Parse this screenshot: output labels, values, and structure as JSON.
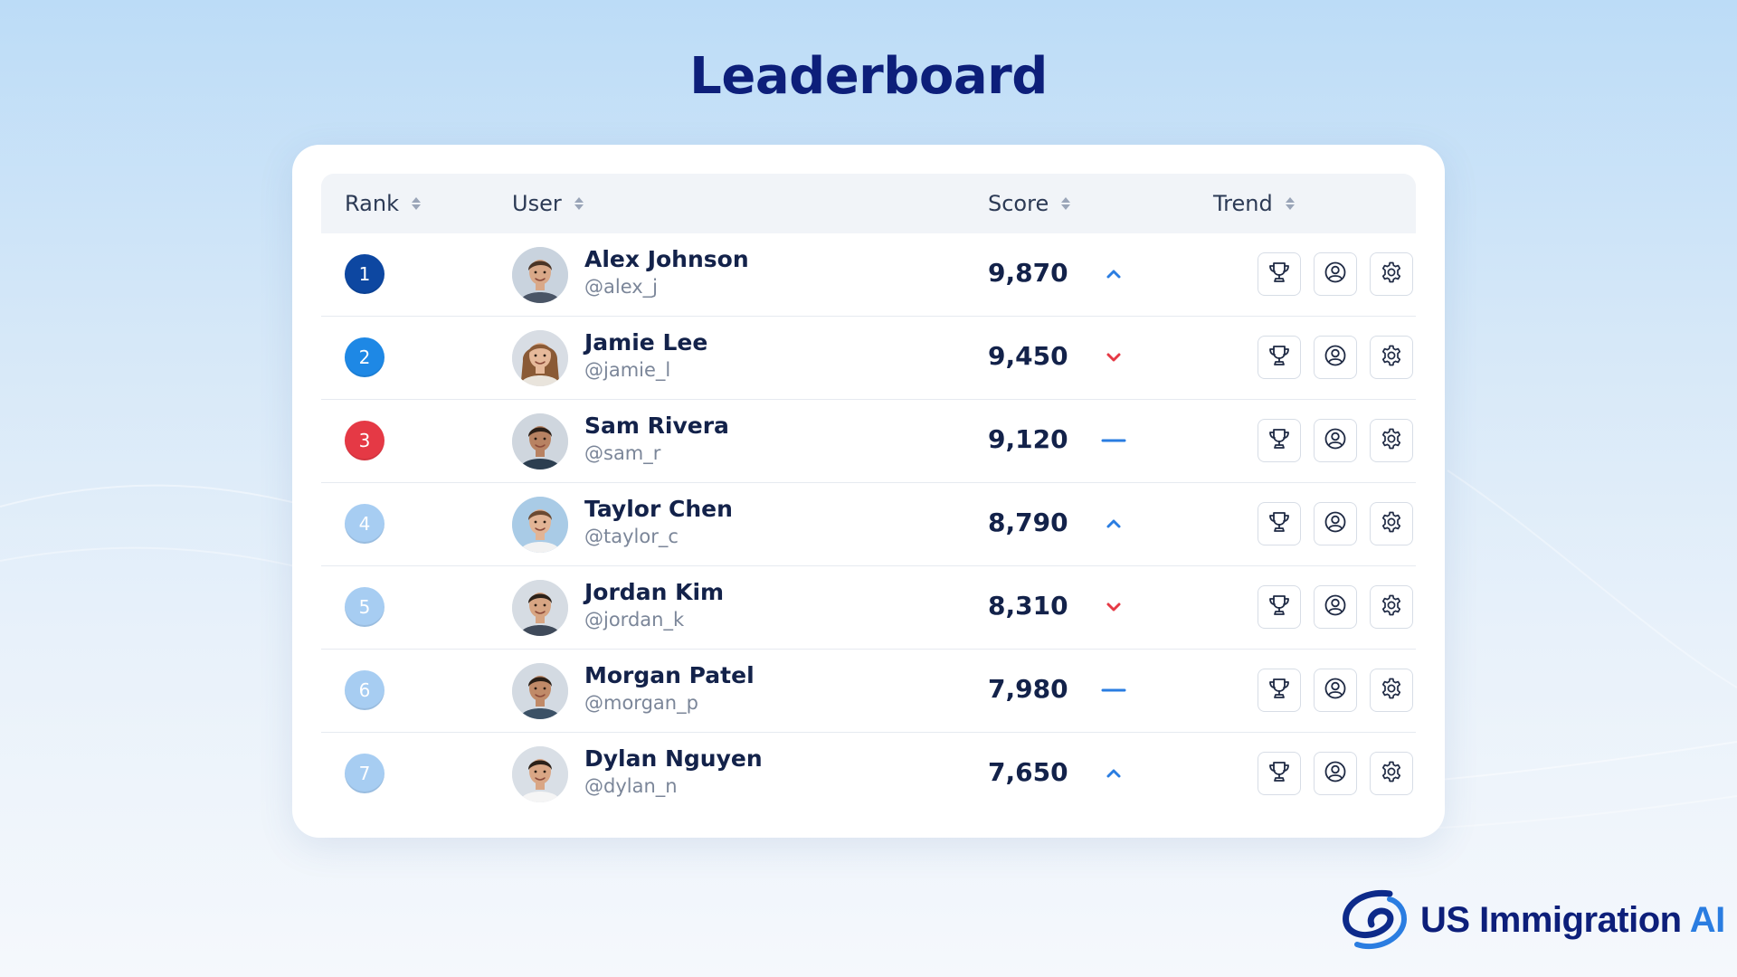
{
  "page": {
    "title": "Leaderboard"
  },
  "table": {
    "columns": [
      {
        "label": "Rank"
      },
      {
        "label": "User"
      },
      {
        "label": "Score"
      },
      {
        "label": "Trend"
      }
    ],
    "rows": [
      {
        "rank": "1",
        "name": "Alex Johnson",
        "handle": "@alex_j",
        "score": "9,870",
        "trend": "up",
        "badge_color": "#0d47a1"
      },
      {
        "rank": "2",
        "name": "Jamie Lee",
        "handle": "@jamie_l",
        "score": "9,450",
        "trend": "down",
        "badge_color": "#1e88e5"
      },
      {
        "rank": "3",
        "name": "Sam Rivera",
        "handle": "@sam_r",
        "score": "9,120",
        "trend": "flat",
        "badge_color": "#e53945"
      },
      {
        "rank": "4",
        "name": "Taylor Chen",
        "handle": "@taylor_c",
        "score": "8,790",
        "trend": "up",
        "badge_color": "#a7cdf2"
      },
      {
        "rank": "5",
        "name": "Jordan Kim",
        "handle": "@jordan_k",
        "score": "8,310",
        "trend": "down",
        "badge_color": "#a7cdf2"
      },
      {
        "rank": "6",
        "name": "Morgan Patel",
        "handle": "@morgan_p",
        "score": "7,980",
        "trend": "flat",
        "badge_color": "#a7cdf2"
      },
      {
        "rank": "7",
        "name": "Dylan Nguyen",
        "handle": "@dylan_n",
        "score": "7,650",
        "trend": "up",
        "badge_color": "#a7cdf2"
      }
    ],
    "row_actions": [
      "trophy-icon",
      "user-profile-icon",
      "gear-icon"
    ]
  },
  "colors": {
    "trend_up": "#2a7de1",
    "trend_down": "#e53945",
    "trend_flat": "#2a7de1",
    "title": "#0d1f7a"
  },
  "brand": {
    "main": "US Immigration",
    "suffix": "AI"
  }
}
